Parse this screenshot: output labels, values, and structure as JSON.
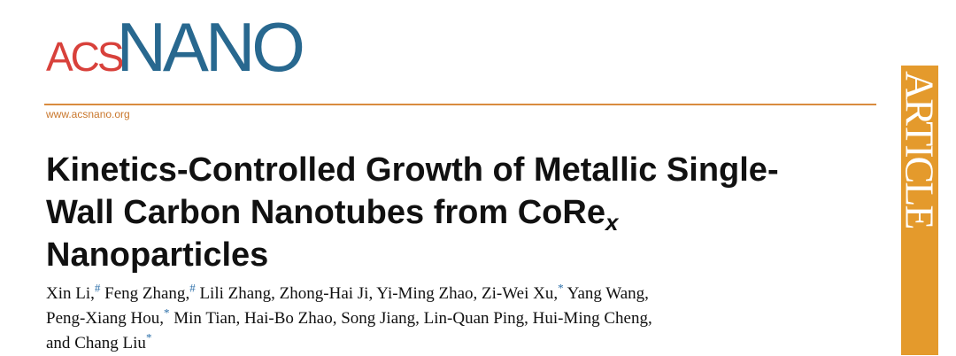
{
  "logo": {
    "acs": "ACS",
    "nano": "NANO"
  },
  "url": "www.acsnano.org",
  "section": "ARTICLE",
  "title": {
    "line1": "Kinetics-Controlled Growth of Metallic Single-",
    "line2": "Wall Carbon Nanotubes from CoRe",
    "subscript": "x",
    "line3": "Nanoparticles"
  },
  "authors": {
    "separator": ",",
    "conjunction": "and",
    "list": [
      {
        "name": "Xin Li",
        "mark": "#"
      },
      {
        "name": "Feng Zhang",
        "mark": "#"
      },
      {
        "name": "Lili Zhang"
      },
      {
        "name": "Zhong-Hai Ji"
      },
      {
        "name": "Yi-Ming Zhao"
      },
      {
        "name": "Zi-Wei Xu",
        "mark": "*"
      },
      {
        "name": "Yang Wang"
      },
      {
        "name": "Peng-Xiang Hou",
        "mark": "*"
      },
      {
        "name": "Min Tian"
      },
      {
        "name": "Hai-Bo Zhao"
      },
      {
        "name": "Song Jiang"
      },
      {
        "name": "Lin-Quan Ping"
      },
      {
        "name": "Hui-Ming Cheng"
      },
      {
        "name": "Chang Liu",
        "mark": "*"
      }
    ]
  }
}
